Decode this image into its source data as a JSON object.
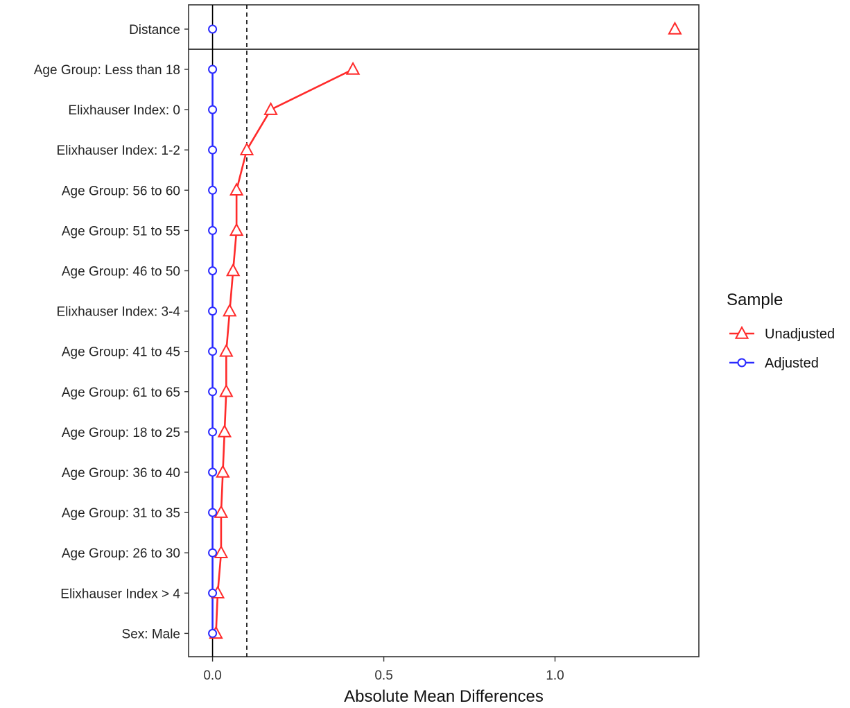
{
  "chart_data": {
    "type": "line",
    "xlabel": "Absolute Mean Differences",
    "x_ticks": [
      0.0,
      0.5,
      1.0
    ],
    "x_tick_labels": [
      "0.0",
      "0.5",
      "1.0"
    ],
    "xlim": [
      -0.07,
      1.42
    ],
    "threshold": 0.1,
    "grid": false,
    "legend": {
      "title": "Sample",
      "placement": "right",
      "entries": [
        "Unadjusted",
        "Adjusted"
      ]
    },
    "distance": {
      "label": "Distance",
      "unadjusted": 1.35,
      "adjusted": 0.0
    },
    "covariates": [
      "Age Group: Less than 18",
      "Elixhauser Index: 0",
      "Elixhauser Index: 1-2",
      "Age Group: 56 to 60",
      "Age Group: 51 to 55",
      "Age Group: 46 to 50",
      "Elixhauser Index: 3-4",
      "Age Group: 41 to 45",
      "Age Group: 61 to 65",
      "Age Group: 18 to 25",
      "Age Group: 36 to 40",
      "Age Group: 31 to 35",
      "Age Group: 26 to 30",
      "Elixhauser Index > 4",
      "Sex: Male"
    ],
    "series": [
      {
        "name": "Unadjusted",
        "color": "#ff2a2a",
        "marker": "triangle",
        "values": [
          0.41,
          0.17,
          0.1,
          0.07,
          0.07,
          0.06,
          0.05,
          0.04,
          0.04,
          0.035,
          0.03,
          0.025,
          0.025,
          0.015,
          0.01
        ]
      },
      {
        "name": "Adjusted",
        "color": "#2a2aff",
        "marker": "circle",
        "values": [
          0,
          0,
          0,
          0,
          0,
          0,
          0,
          0,
          0,
          0,
          0,
          0,
          0,
          0,
          0
        ]
      }
    ]
  }
}
